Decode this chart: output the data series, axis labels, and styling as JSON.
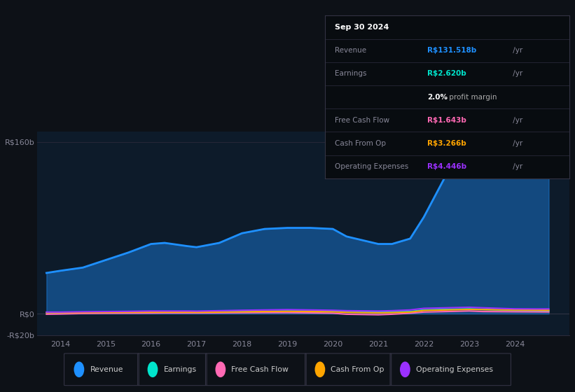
{
  "bg_color": "#0d1117",
  "plot_bg_color": "#0d1b2a",
  "years": [
    2013.7,
    2014,
    2014.5,
    2015,
    2015.5,
    2016,
    2016.3,
    2016.8,
    2017,
    2017.5,
    2018,
    2018.5,
    2019,
    2019.5,
    2020,
    2020.3,
    2021,
    2021.3,
    2021.7,
    2022,
    2022.5,
    2023,
    2023.3,
    2024,
    2024.5,
    2024.75
  ],
  "revenue": [
    38,
    40,
    43,
    50,
    57,
    65,
    66,
    63,
    62,
    66,
    75,
    79,
    80,
    80,
    79,
    72,
    65,
    65,
    70,
    90,
    130,
    160,
    155,
    130,
    127,
    131.5
  ],
  "earnings": [
    1.0,
    1.0,
    1.1,
    1.2,
    1.4,
    1.5,
    1.5,
    1.5,
    1.5,
    1.8,
    2.0,
    2.2,
    2.5,
    2.4,
    2.4,
    2.0,
    1.8,
    1.8,
    2.0,
    3.5,
    4.0,
    4.5,
    4.0,
    3.0,
    2.8,
    2.62
  ],
  "free_cash_flow": [
    -0.5,
    -0.3,
    0.2,
    0.4,
    0.5,
    0.6,
    0.7,
    0.7,
    0.7,
    0.8,
    0.9,
    1.0,
    1.0,
    0.8,
    0.5,
    -0.5,
    -1.0,
    -0.5,
    0.5,
    1.5,
    2.0,
    2.5,
    2.0,
    1.8,
    1.7,
    1.643
  ],
  "cash_from_op": [
    1.0,
    1.0,
    1.1,
    1.2,
    1.3,
    1.4,
    1.4,
    1.4,
    1.3,
    1.5,
    1.8,
    2.0,
    2.2,
    2.0,
    1.8,
    1.2,
    0.8,
    1.0,
    1.5,
    3.0,
    3.5,
    4.0,
    3.8,
    3.5,
    3.4,
    3.266
  ],
  "operating_expenses": [
    1.5,
    1.5,
    1.8,
    2.0,
    2.2,
    2.5,
    2.5,
    2.5,
    2.4,
    2.8,
    3.2,
    3.5,
    3.8,
    3.5,
    3.2,
    2.8,
    2.5,
    2.8,
    3.5,
    5.0,
    5.5,
    6.0,
    5.5,
    4.5,
    4.4,
    4.446
  ],
  "revenue_color": "#1e90ff",
  "earnings_color": "#00e5cc",
  "free_cash_flow_color": "#ff69b4",
  "cash_from_op_color": "#ffa500",
  "operating_expenses_color": "#9b30ff",
  "table_rows": [
    {
      "label": "Sep 30 2024",
      "value": "",
      "suffix": "",
      "type": "title"
    },
    {
      "label": "Revenue",
      "value": "R$131.518b",
      "suffix": " /yr",
      "color": "#1e90ff"
    },
    {
      "label": "Earnings",
      "value": "R$2.620b",
      "suffix": " /yr",
      "color": "#00e5cc"
    },
    {
      "label": "",
      "value": "2.0%",
      "suffix": " profit margin",
      "type": "margin"
    },
    {
      "label": "Free Cash Flow",
      "value": "R$1.643b",
      "suffix": " /yr",
      "color": "#ff69b4"
    },
    {
      "label": "Cash From Op",
      "value": "R$3.266b",
      "suffix": " /yr",
      "color": "#ffa500"
    },
    {
      "label": "Operating Expenses",
      "value": "R$4.446b",
      "suffix": " /yr",
      "color": "#9b30ff"
    }
  ],
  "legend_items": [
    {
      "label": "Revenue",
      "color": "#1e90ff"
    },
    {
      "label": "Earnings",
      "color": "#00e5cc"
    },
    {
      "label": "Free Cash Flow",
      "color": "#ff69b4"
    },
    {
      "label": "Cash From Op",
      "color": "#ffa500"
    },
    {
      "label": "Operating Expenses",
      "color": "#9b30ff"
    }
  ],
  "xlim": [
    2013.5,
    2025.2
  ],
  "ylim": [
    -20,
    170
  ],
  "xticks": [
    2014,
    2015,
    2016,
    2017,
    2018,
    2019,
    2020,
    2021,
    2022,
    2023,
    2024
  ],
  "ytick_vals": [
    -20,
    0,
    160
  ],
  "ytick_labels": [
    "-R$20b",
    "R$0",
    "R$160b"
  ]
}
